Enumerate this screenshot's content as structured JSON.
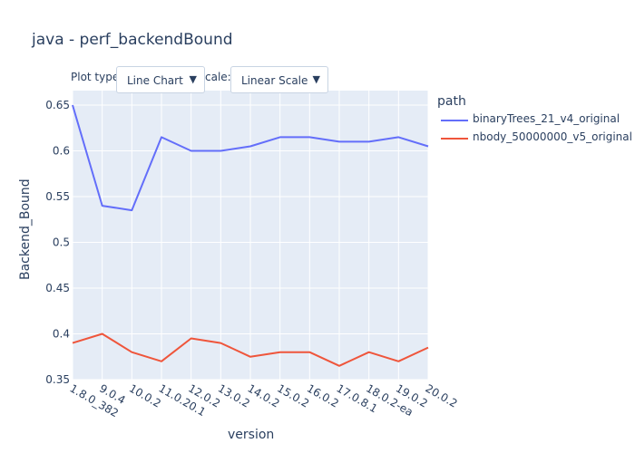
{
  "title": "java - perf_backendBound",
  "controls": {
    "plot_type_label": "Plot type",
    "plot_type_value": "Line Chart",
    "scale_label": "cale:",
    "scale_value": "Linear Scale",
    "arrow_glyph": "▼"
  },
  "legend": {
    "title": "path",
    "items": [
      {
        "name": "binaryTrees_21_v4_original",
        "color": "#636efa"
      },
      {
        "name": "nbody_50000000_v5_original",
        "color": "#ef553b"
      }
    ]
  },
  "chart_data": {
    "type": "line",
    "title": "java - perf_backendBound",
    "xlabel": "version",
    "ylabel": "Backend_Bound",
    "x": [
      "1.8.0_382",
      "9.0.4",
      "10.0.2",
      "11.0.20.1",
      "12.0.2",
      "13.0.2",
      "14.0.2",
      "15.0.2",
      "16.0.2",
      "17.0.8.1",
      "18.0.2-ea",
      "19.0.2",
      "20.0.2"
    ],
    "ylim": [
      0.35,
      0.66
    ],
    "yticks": [
      0.35,
      0.4,
      0.45,
      0.5,
      0.55,
      0.6,
      0.65
    ],
    "ytick_labels": [
      "0.35",
      "0.4",
      "0.45",
      "0.5",
      "0.55",
      "0.6",
      "0.65"
    ],
    "grid": true,
    "legend_position": "right",
    "series": [
      {
        "name": "binaryTrees_21_v4_original",
        "color": "#636efa",
        "values": [
          0.65,
          0.54,
          0.535,
          0.615,
          0.6,
          0.6,
          0.605,
          0.615,
          0.615,
          0.61,
          0.61,
          0.615,
          0.605
        ]
      },
      {
        "name": "nbody_50000000_v5_original",
        "color": "#ef553b",
        "values": [
          0.39,
          0.4,
          0.38,
          0.37,
          0.395,
          0.39,
          0.375,
          0.38,
          0.38,
          0.365,
          0.38,
          0.37,
          0.385
        ]
      }
    ]
  }
}
